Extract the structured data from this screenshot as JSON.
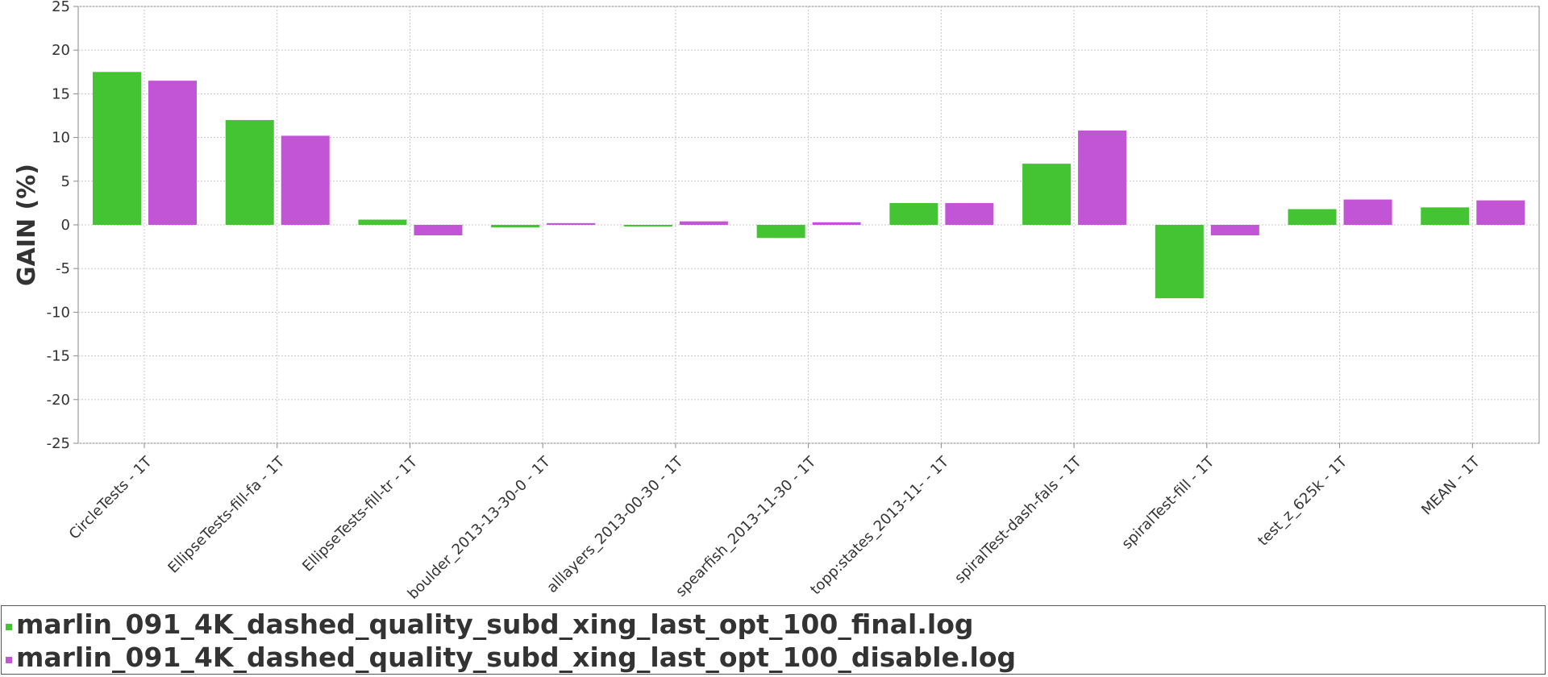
{
  "chart_data": {
    "type": "bar",
    "title": "",
    "xlabel": "",
    "ylabel": "GAIN (%)",
    "ylim": [
      -25,
      25
    ],
    "yticks": [
      25,
      20,
      15,
      10,
      5,
      0,
      -5,
      -10,
      -15,
      -20,
      -25
    ],
    "grid": true,
    "legend_position": "bottom",
    "categories": [
      "CircleTests - 1T",
      "EllipseTests-fill-fa - 1T",
      "EllipseTests-fill-tr - 1T",
      "boulder_2013-13-30-0 - 1T",
      "alllayers_2013-00-30 - 1T",
      "spearfish_2013-11-30 - 1T",
      "topp:states_2013-11- - 1T",
      "spiralTest-dash-fals - 1T",
      "spiralTest-fill - 1T",
      "test_z_625k - 1T",
      "MEAN - 1T"
    ],
    "series": [
      {
        "name": "marlin_091_4K_dashed_quality_subd_xing_last_opt_100_final.log",
        "color": "#44c432",
        "values": [
          17.5,
          12.0,
          0.6,
          -0.3,
          -0.1,
          -1.5,
          2.5,
          7.0,
          -8.4,
          1.8,
          2.0
        ]
      },
      {
        "name": "marlin_091_4K_dashed_quality_subd_xing_last_opt_100_disable.log",
        "color": "#c254d6",
        "values": [
          16.5,
          10.2,
          -1.2,
          0.2,
          0.4,
          0.3,
          2.5,
          10.8,
          -1.2,
          2.9,
          2.8
        ]
      }
    ]
  }
}
